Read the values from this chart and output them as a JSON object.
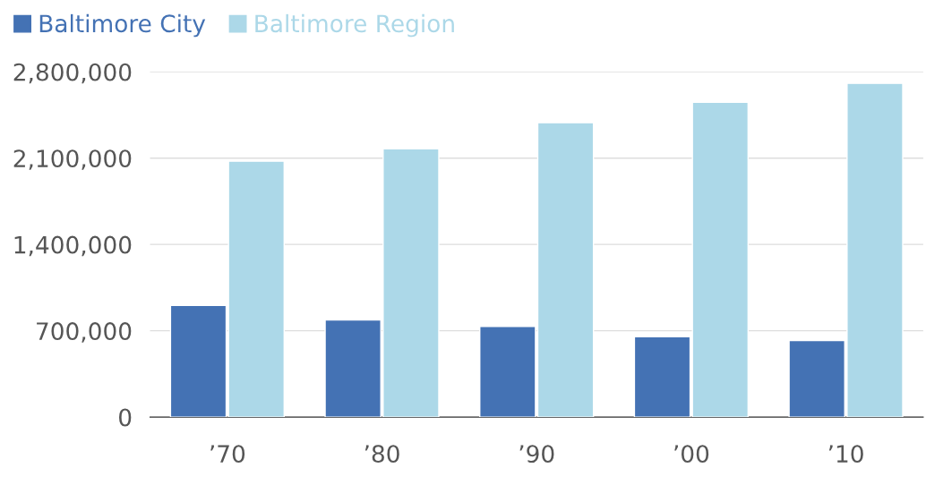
{
  "chart_data": {
    "type": "bar",
    "categories": [
      "’70",
      "’80",
      "’90",
      "’00",
      "’10"
    ],
    "series": [
      {
        "name": "Baltimore City",
        "color": "#4472b4",
        "values": [
          906000,
          787000,
          736000,
          651000,
          621000
        ]
      },
      {
        "name": "Baltimore Region",
        "color": "#acd8e8",
        "values": [
          2075000,
          2176000,
          2387000,
          2553000,
          2706000
        ]
      }
    ],
    "ylim": [
      0,
      2800000
    ],
    "yticks": [
      {
        "value": 0,
        "label": "0"
      },
      {
        "value": 700000,
        "label": "700,000"
      },
      {
        "value": 1400000,
        "label": "1,400,000"
      },
      {
        "value": 2100000,
        "label": "2,100,000"
      },
      {
        "value": 2800000,
        "label": "2,800,000"
      }
    ],
    "grid": "y",
    "legend": "top left"
  }
}
